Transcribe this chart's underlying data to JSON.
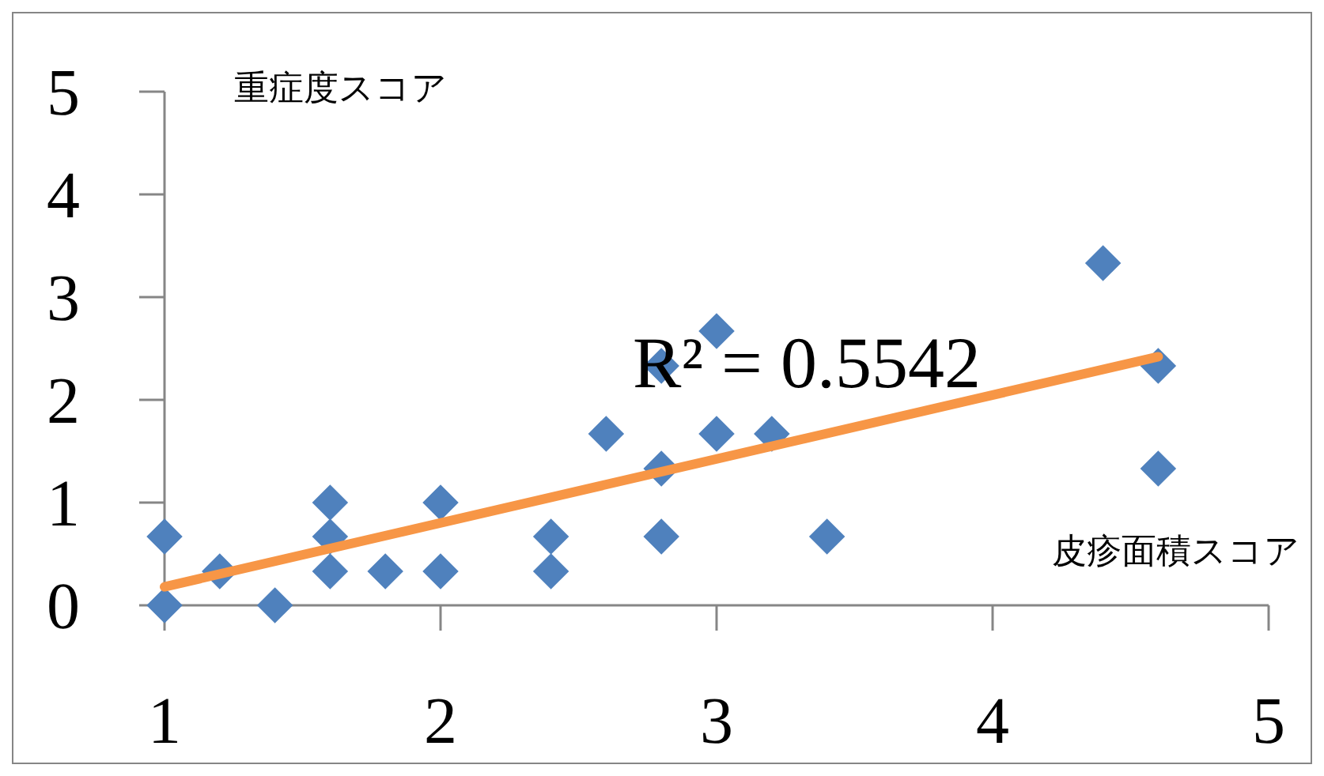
{
  "chart_data": {
    "type": "scatter",
    "xlabel": "皮疹面積スコア",
    "ylabel": "重症度スコア",
    "annotations": [
      "R² = 0.5542"
    ],
    "xlim": [
      1,
      5
    ],
    "ylim": [
      0,
      5
    ],
    "xticks": [
      1,
      2,
      3,
      4,
      5
    ],
    "yticks": [
      0,
      1,
      2,
      3,
      4,
      5
    ],
    "grid": false,
    "series": [
      {
        "marker": "diamond",
        "color": "#4f81bd",
        "x": [
          1,
          1,
          1.2,
          1.4,
          1.6,
          1.6,
          1.6,
          1.8,
          2,
          2,
          2.4,
          2.4,
          2.6,
          2.8,
          2.8,
          2.8,
          3,
          3,
          3.2,
          3.4,
          4.4,
          4.6,
          4.6
        ],
        "values": [
          0.67,
          0,
          0.33,
          0,
          1,
          0.67,
          0.33,
          0.33,
          1,
          0.33,
          0.67,
          0.33,
          1.67,
          2.33,
          1.33,
          0.67,
          2.67,
          1.67,
          1.67,
          0.67,
          3.33,
          2.33,
          1.33
        ]
      },
      {
        "type": "line",
        "color": "#f79646",
        "x": [
          1,
          4.6
        ],
        "values": [
          0.18,
          2.42
        ]
      }
    ]
  }
}
